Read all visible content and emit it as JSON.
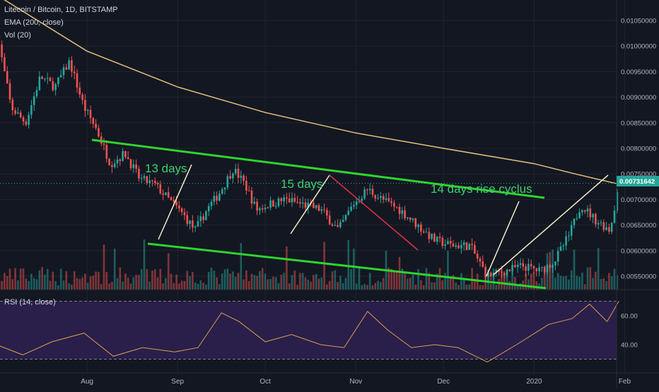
{
  "header": {
    "symbol": "Litecoin / Bitcoin, 1D, BITSTAMP",
    "ema_label": "EMA (200, close)",
    "vol_label": "Vol (20)"
  },
  "rsi_label": "RSI (14, close)",
  "price_label": "0.00731642",
  "annotations": [
    "13 days",
    "15 days",
    "14 days rise cyclus"
  ],
  "colors": {
    "background": "#131722",
    "up": "#26a69a",
    "down": "#ef5350",
    "ema": "#e3c07a",
    "channel": "#2fd42f",
    "trend_white": "#f0f0c8",
    "trend_red": "#e0314a",
    "rsi_line": "#d4a24c",
    "rsi_band": "#2a1e4a",
    "price_tag": "#26a69a"
  },
  "chart_data": [
    {
      "type": "candlestick",
      "title": "Litecoin / Bitcoin, 1D, BITSTAMP",
      "x_ticks": [
        "Aug",
        "Sep",
        "Oct",
        "Nov",
        "Dec",
        "2020",
        "Feb"
      ],
      "y_ticks": [
        "0.01050000",
        "0.01000000",
        "0.00950000",
        "0.00900000",
        "0.00850000",
        "0.00800000",
        "0.00750000",
        "0.00700000",
        "0.00650000",
        "0.00600000",
        "0.00550000"
      ],
      "ylim": [
        0.0051,
        0.011
      ],
      "close_path": [
        [
          "2019-07-01",
          0.0103
        ],
        [
          "2019-07-06",
          0.0088
        ],
        [
          "2019-07-11",
          0.0085
        ],
        [
          "2019-07-16",
          0.0094
        ],
        [
          "2019-07-21",
          0.0092
        ],
        [
          "2019-07-26",
          0.0097
        ],
        [
          "2019-07-31",
          0.0088
        ],
        [
          "2019-08-04",
          0.0084
        ],
        [
          "2019-08-09",
          0.0077
        ],
        [
          "2019-08-14",
          0.0079
        ],
        [
          "2019-08-19",
          0.0074
        ],
        [
          "2019-08-24",
          0.0073
        ],
        [
          "2019-08-29",
          0.007
        ],
        [
          "2019-09-03",
          0.0067
        ],
        [
          "2019-09-07",
          0.0064
        ],
        [
          "2019-09-11",
          0.0068
        ],
        [
          "2019-09-15",
          0.0071
        ],
        [
          "2019-09-20",
          0.0076
        ],
        [
          "2019-09-24",
          0.0073
        ],
        [
          "2019-09-28",
          0.0068
        ],
        [
          "2019-10-02",
          0.0069
        ],
        [
          "2019-10-08",
          0.007
        ],
        [
          "2019-10-14",
          0.0069
        ],
        [
          "2019-10-20",
          0.0068
        ],
        [
          "2019-10-26",
          0.0064
        ],
        [
          "2019-10-31",
          0.0069
        ],
        [
          "2019-11-05",
          0.0072
        ],
        [
          "2019-11-10",
          0.007
        ],
        [
          "2019-11-16",
          0.0068
        ],
        [
          "2019-11-22",
          0.0065
        ],
        [
          "2019-11-28",
          0.0062
        ],
        [
          "2019-12-04",
          0.0061
        ],
        [
          "2019-12-10",
          0.0061
        ],
        [
          "2019-12-16",
          0.0055
        ],
        [
          "2019-12-22",
          0.0056
        ],
        [
          "2019-12-28",
          0.0057
        ],
        [
          "2020-01-03",
          0.0056
        ],
        [
          "2020-01-08",
          0.0058
        ],
        [
          "2020-01-13",
          0.0063
        ],
        [
          "2020-01-17",
          0.0069
        ],
        [
          "2020-01-22",
          0.0066
        ],
        [
          "2020-01-27",
          0.0064
        ],
        [
          "2020-01-30",
          0.0073
        ]
      ],
      "ema_200": [
        [
          "2019-07-01",
          0.011
        ],
        [
          "2019-08-01",
          0.0099
        ],
        [
          "2019-09-01",
          0.0092
        ],
        [
          "2019-10-01",
          0.0087
        ],
        [
          "2019-11-01",
          0.0083
        ],
        [
          "2019-12-01",
          0.008
        ],
        [
          "2020-01-01",
          0.0077
        ],
        [
          "2020-01-15",
          0.0075
        ],
        [
          "2020-01-30",
          0.0073
        ]
      ],
      "rsi": {
        "yticks": [
          "60.00",
          "40.00"
        ],
        "levels": [
          30,
          70
        ],
        "values": [
          [
            "2019-07-01",
            40
          ],
          [
            "2019-07-10",
            33
          ],
          [
            "2019-07-20",
            42
          ],
          [
            "2019-07-31",
            48
          ],
          [
            "2019-08-10",
            32
          ],
          [
            "2019-08-20",
            38
          ],
          [
            "2019-08-31",
            35
          ],
          [
            "2019-09-08",
            38
          ],
          [
            "2019-09-16",
            62
          ],
          [
            "2019-09-22",
            56
          ],
          [
            "2019-10-01",
            42
          ],
          [
            "2019-10-10",
            47
          ],
          [
            "2019-10-20",
            40
          ],
          [
            "2019-10-28",
            38
          ],
          [
            "2019-11-05",
            63
          ],
          [
            "2019-11-12",
            50
          ],
          [
            "2019-11-20",
            38
          ],
          [
            "2019-11-28",
            40
          ],
          [
            "2019-12-06",
            38
          ],
          [
            "2019-12-16",
            28
          ],
          [
            "2019-12-26",
            40
          ],
          [
            "2020-01-06",
            54
          ],
          [
            "2020-01-14",
            58
          ],
          [
            "2020-01-20",
            68
          ],
          [
            "2020-01-26",
            56
          ],
          [
            "2020-01-30",
            70
          ]
        ]
      }
    }
  ]
}
